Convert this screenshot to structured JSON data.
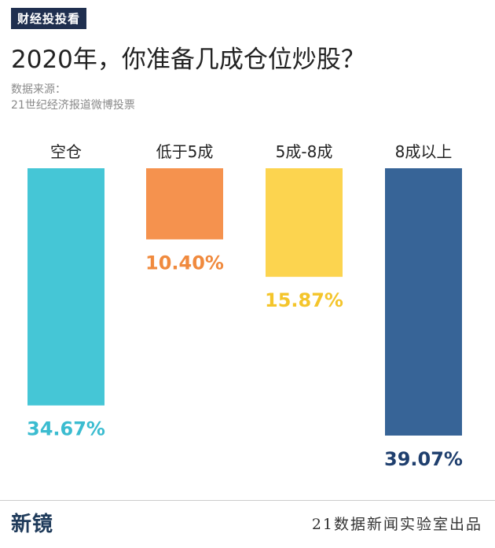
{
  "tag": "财经投投看",
  "title": "2020年，你准备几成仓位炒股？",
  "source_line1": "数据来源：",
  "source_line2": "21世纪经济报道微博投票",
  "logo_text": "新镜",
  "footer": "21数据新闻实验室出品",
  "chart_data": {
    "type": "bar",
    "title": "2020年，你准备几成仓位炒股？",
    "categories": [
      "空仓",
      "低于5成",
      "5成-8成",
      "8成以上"
    ],
    "values": [
      34.67,
      10.4,
      15.87,
      39.07
    ],
    "value_labels": [
      "34.67%",
      "10.40%",
      "15.87%",
      "39.07%"
    ],
    "unit": "%",
    "colors": [
      "#45c6d6",
      "#f5924e",
      "#fcd44f",
      "#376497"
    ],
    "label_colors": [
      "#3bbcd0",
      "#f08a3e",
      "#f4c52b",
      "#1f3f6e"
    ],
    "ylim": [
      0,
      39.07
    ],
    "grid": false,
    "legend": "none"
  }
}
